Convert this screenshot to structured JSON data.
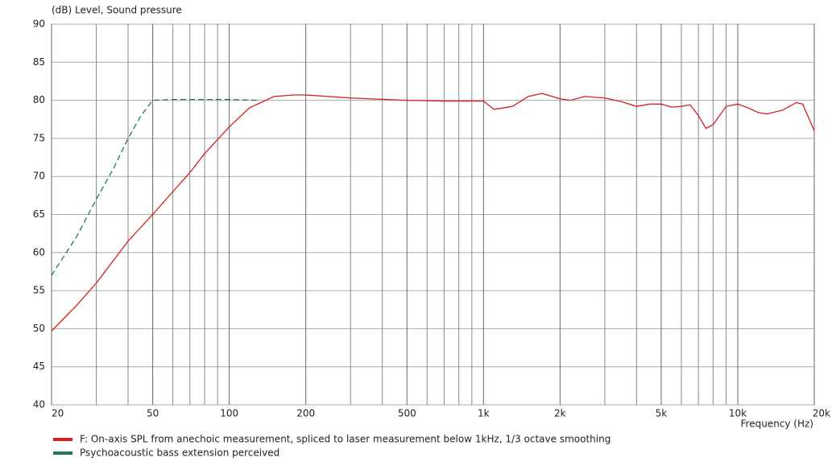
{
  "chart_data": {
    "type": "line",
    "y_label": "(dB)  Level, Sound pressure",
    "x_label": "Frequency  (Hz)",
    "xscale": "log",
    "xlim": [
      20,
      20000
    ],
    "ylim": [
      40,
      90
    ],
    "xticks": [
      20,
      50,
      100,
      200,
      500,
      {
        "value": 1000,
        "label": "1k"
      },
      {
        "value": 2000,
        "label": "2k"
      },
      {
        "value": 5000,
        "label": "5k"
      },
      {
        "value": 10000,
        "label": "10k"
      },
      {
        "value": 20000,
        "label": "20k"
      }
    ],
    "x_minor_grid": [
      30,
      40,
      60,
      70,
      80,
      90,
      300,
      400,
      600,
      700,
      800,
      900,
      3000,
      4000,
      6000,
      7000,
      8000,
      9000
    ],
    "yticks": [
      40,
      45,
      50,
      55,
      60,
      65,
      70,
      75,
      80,
      85,
      90
    ],
    "grid": true,
    "series": [
      {
        "name": "F: On-axis SPL from anechoic measurement, spliced to laser measurement below 1kHz, 1/3 octave smoothing",
        "color": "#d42020",
        "dashed": false,
        "x": [
          20,
          25,
          30,
          40,
          50,
          60,
          70,
          80,
          100,
          120,
          150,
          180,
          200,
          300,
          500,
          700,
          1000,
          1100,
          1300,
          1500,
          1700,
          2000,
          2200,
          2500,
          3000,
          3500,
          4000,
          4500,
          5000,
          5500,
          6000,
          6500,
          7000,
          7500,
          8000,
          9000,
          10000,
          11000,
          12000,
          13000,
          15000,
          17000,
          18000,
          20000
        ],
        "values": [
          49.7,
          53,
          56,
          61.5,
          65,
          68,
          70.5,
          73,
          76.5,
          79,
          80.5,
          80.7,
          80.7,
          80.3,
          80,
          79.9,
          79.9,
          78.8,
          79.2,
          80.5,
          80.9,
          80.2,
          80,
          80.5,
          80.3,
          79.8,
          79.2,
          79.5,
          79.5,
          79.1,
          79.2,
          79.4,
          78,
          76.3,
          76.8,
          79.2,
          79.5,
          79,
          78.4,
          78.2,
          78.7,
          79.7,
          79.5,
          76
        ]
      },
      {
        "name": "Psychoacoustic bass extension perceived",
        "color": "#1e7a50",
        "dashed": true,
        "x": [
          20,
          25,
          30,
          35,
          40,
          45,
          50,
          60,
          100,
          130
        ],
        "values": [
          57,
          62,
          67,
          71,
          75,
          78,
          80,
          80.1,
          80.1,
          80
        ]
      }
    ]
  }
}
